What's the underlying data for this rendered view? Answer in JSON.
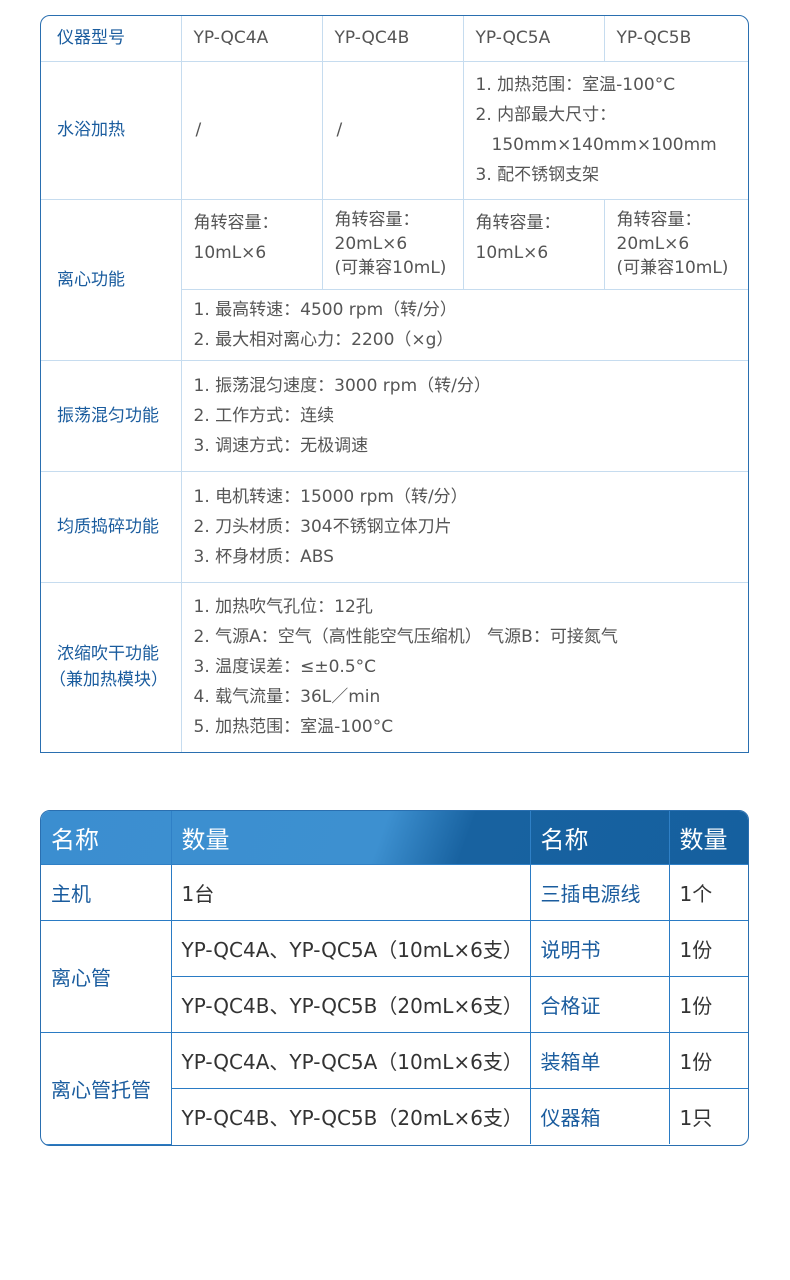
{
  "spec_table": {
    "header": {
      "label": "仪器型号",
      "models": [
        "YP-QC4A",
        "YP-QC4B",
        "YP-QC5A",
        "YP-QC5B"
      ]
    },
    "water_bath": {
      "label": "水浴加热",
      "qc4a": "/",
      "qc4b": "/",
      "qc5": [
        "1. 加热范围：室温-100°C",
        "2. 内部最大尺寸：",
        "150mm×140mm×100mm",
        "3. 配不锈钢支架"
      ]
    },
    "centrifuge": {
      "label": "离心功能",
      "capacity": [
        [
          "角转容量：",
          "10mL×6"
        ],
        [
          "角转容量：",
          "20mL×6",
          "(可兼容10mL)"
        ],
        [
          "角转容量：",
          "10mL×6"
        ],
        [
          "角转容量：",
          "20mL×6",
          "(可兼容10mL)"
        ]
      ],
      "common": [
        "1. 最高转速：4500 rpm（转/分）",
        "2. 最大相对离心力：2200（×g）"
      ]
    },
    "vortex": {
      "label": "振荡混匀功能",
      "lines": [
        "1. 振荡混匀速度：3000 rpm（转/分）",
        "2. 工作方式：连续",
        "3. 调速方式：无极调速"
      ]
    },
    "homogenizer": {
      "label": "均质捣碎功能",
      "lines": [
        "1. 电机转速：15000 rpm（转/分）",
        "2. 刀头材质：304不锈钢立体刀片",
        "3. 杯身材质：ABS"
      ]
    },
    "concentrator": {
      "label": [
        "浓缩吹干功能",
        "（兼加热模块）"
      ],
      "lines": [
        "1. 加热吹气孔位：12孔",
        "2. 气源A：空气（高性能空气压缩机）  气源B：可接氮气",
        "3. 温度误差：≤±0.5°C",
        "4. 载气流量：36L／min",
        "5. 加热范围：室温-100°C"
      ]
    }
  },
  "packing_table": {
    "headers": [
      "名称",
      "数量",
      "名称",
      "数量"
    ],
    "host": {
      "name": "主机",
      "qty": "1台"
    },
    "tube": {
      "name": "离心管",
      "rows": [
        "YP-QC4A、YP-QC5A（10mL×6支）",
        "YP-QC4B、YP-QC5B（20mL×6支）"
      ]
    },
    "holder": {
      "name": "离心管托管",
      "rows": [
        "YP-QC4A、YP-QC5A（10mL×6支）",
        "YP-QC4B、YP-QC5B（20mL×6支）"
      ]
    },
    "right": [
      {
        "name": "三插电源线",
        "qty": "1个"
      },
      {
        "name": "说明书",
        "qty": "1份"
      },
      {
        "name": "合格证",
        "qty": "1份"
      },
      {
        "name": "装箱单",
        "qty": "1份"
      },
      {
        "name": "仪器箱",
        "qty": "1只"
      }
    ]
  },
  "colors": {
    "border": "#2a6fb0",
    "label": "#1a5c9e",
    "header_bg": "#3b8ed0",
    "header_bg_dark": "#15609f"
  }
}
